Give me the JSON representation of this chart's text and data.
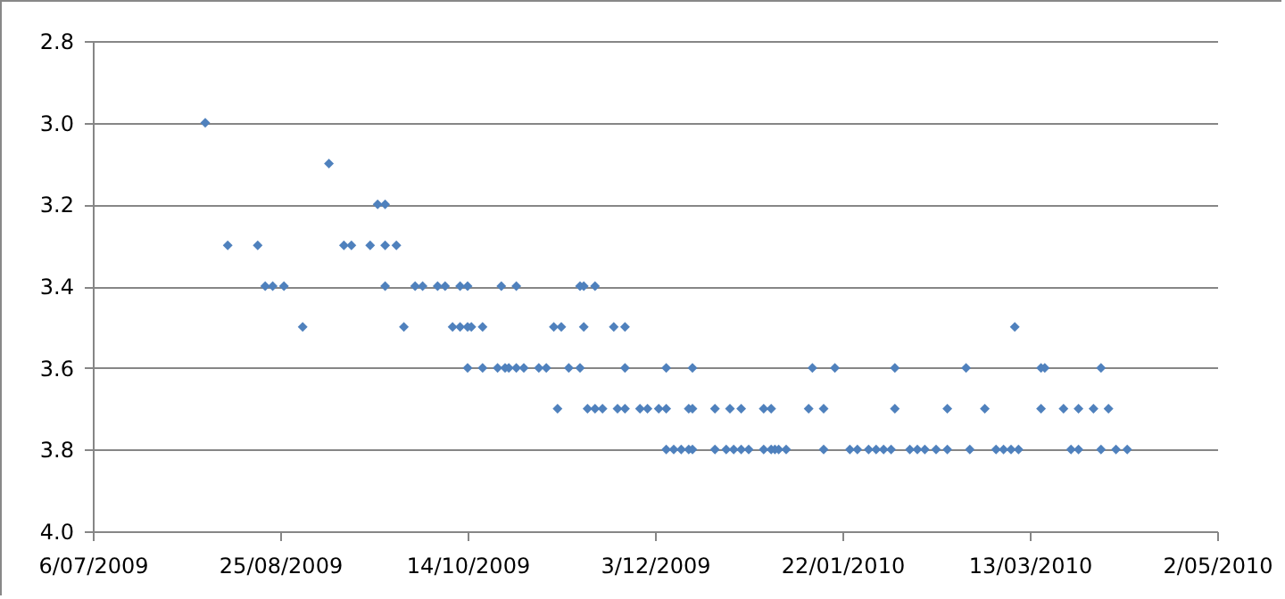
{
  "chart_data": {
    "type": "scatter",
    "x": [
      "2009-08-05",
      "2009-09-07",
      "2009-09-20",
      "2009-09-22",
      "2009-08-11",
      "2009-08-19",
      "2009-09-11",
      "2009-09-13",
      "2009-09-18",
      "2009-09-22",
      "2009-09-25",
      "2009-08-21",
      "2009-08-23",
      "2009-08-26",
      "2009-09-22",
      "2009-09-30",
      "2009-10-02",
      "2009-10-06",
      "2009-10-08",
      "2009-10-12",
      "2009-10-14",
      "2009-10-23",
      "2009-10-27",
      "2009-11-13",
      "2009-11-14",
      "2009-11-17",
      "2009-08-31",
      "2009-09-27",
      "2009-10-10",
      "2009-10-12",
      "2009-10-14",
      "2009-10-15",
      "2009-10-18",
      "2009-11-06",
      "2009-11-08",
      "2009-11-14",
      "2009-11-22",
      "2009-11-25",
      "2010-03-09",
      "2009-10-14",
      "2009-10-18",
      "2009-10-22",
      "2009-10-24",
      "2009-10-25",
      "2009-10-27",
      "2009-10-29",
      "2009-11-02",
      "2009-11-04",
      "2009-11-10",
      "2009-11-13",
      "2009-11-25",
      "2009-12-06",
      "2009-12-13",
      "2010-01-14",
      "2010-01-20",
      "2010-02-05",
      "2010-02-24",
      "2010-03-16",
      "2010-03-17",
      "2010-04-01",
      "2009-11-07",
      "2009-11-15",
      "2009-11-17",
      "2009-11-19",
      "2009-11-23",
      "2009-11-25",
      "2009-11-29",
      "2009-12-01",
      "2009-12-04",
      "2009-12-06",
      "2009-12-12",
      "2009-12-13",
      "2009-12-19",
      "2009-12-23",
      "2009-12-26",
      "2010-01-01",
      "2010-01-03",
      "2010-01-13",
      "2010-01-17",
      "2010-02-05",
      "2010-02-19",
      "2010-03-01",
      "2010-03-16",
      "2010-03-22",
      "2010-03-26",
      "2010-03-30",
      "2010-04-03",
      "2009-12-06",
      "2009-12-08",
      "2009-12-10",
      "2009-12-12",
      "2009-12-13",
      "2009-12-19",
      "2009-12-22",
      "2009-12-24",
      "2009-12-26",
      "2009-12-28",
      "2010-01-01",
      "2010-01-03",
      "2010-01-04",
      "2010-01-05",
      "2010-01-07",
      "2010-01-17",
      "2010-01-24",
      "2010-01-26",
      "2010-01-29",
      "2010-01-31",
      "2010-02-02",
      "2010-02-04",
      "2010-02-09",
      "2010-02-11",
      "2010-02-13",
      "2010-02-16",
      "2010-02-19",
      "2010-02-25",
      "2010-03-04",
      "2010-03-06",
      "2010-03-08",
      "2010-03-10",
      "2010-03-24",
      "2010-03-26",
      "2010-04-01",
      "2010-04-05",
      "2010-04-08"
    ],
    "series": [
      {
        "color": "#4f81bd",
        "values": [
          3.0,
          3.1,
          3.2,
          3.2,
          3.3,
          3.3,
          3.3,
          3.3,
          3.3,
          3.3,
          3.3,
          3.4,
          3.4,
          3.4,
          3.4,
          3.4,
          3.4,
          3.4,
          3.4,
          3.4,
          3.4,
          3.4,
          3.4,
          3.4,
          3.4,
          3.4,
          3.5,
          3.5,
          3.5,
          3.5,
          3.5,
          3.5,
          3.5,
          3.5,
          3.5,
          3.5,
          3.5,
          3.5,
          3.5,
          3.6,
          3.6,
          3.6,
          3.6,
          3.6,
          3.6,
          3.6,
          3.6,
          3.6,
          3.6,
          3.6,
          3.6,
          3.6,
          3.6,
          3.6,
          3.6,
          3.6,
          3.6,
          3.6,
          3.6,
          3.6,
          3.7,
          3.7,
          3.7,
          3.7,
          3.7,
          3.7,
          3.7,
          3.7,
          3.7,
          3.7,
          3.7,
          3.7,
          3.7,
          3.7,
          3.7,
          3.7,
          3.7,
          3.7,
          3.7,
          3.7,
          3.7,
          3.7,
          3.7,
          3.7,
          3.7,
          3.7,
          3.7,
          3.8,
          3.8,
          3.8,
          3.8,
          3.8,
          3.8,
          3.8,
          3.8,
          3.8,
          3.8,
          3.8,
          3.8,
          3.8,
          3.8,
          3.8,
          3.8,
          3.8,
          3.8,
          3.8,
          3.8,
          3.8,
          3.8,
          3.8,
          3.8,
          3.8,
          3.8,
          3.8,
          3.8,
          3.8,
          3.8,
          3.8,
          3.8,
          3.8,
          3.8,
          3.8,
          3.8,
          3.8
        ]
      }
    ],
    "xlim": [
      "2009-07-06",
      "2010-05-02"
    ],
    "xticks": [
      {
        "value": "2009-07-06",
        "label": "6/07/2009"
      },
      {
        "value": "2009-08-25",
        "label": "25/08/2009"
      },
      {
        "value": "2009-10-14",
        "label": "14/10/2009"
      },
      {
        "value": "2009-12-03",
        "label": "3/12/2009"
      },
      {
        "value": "2010-01-22",
        "label": "22/01/2010"
      },
      {
        "value": "2010-03-13",
        "label": "13/03/2010"
      },
      {
        "value": "2010-05-02",
        "label": "2/05/2010"
      }
    ],
    "ylim": [
      4.0,
      2.8
    ],
    "yticks": [
      {
        "value": 2.8,
        "label": "2.8"
      },
      {
        "value": 3.0,
        "label": "3.0"
      },
      {
        "value": 3.2,
        "label": "3.2"
      },
      {
        "value": 3.4,
        "label": "3.4"
      },
      {
        "value": 3.6,
        "label": "3.6"
      },
      {
        "value": 3.8,
        "label": "3.8"
      },
      {
        "value": 4.0,
        "label": "4.0"
      }
    ],
    "grid": "y",
    "marker": "diamond"
  }
}
